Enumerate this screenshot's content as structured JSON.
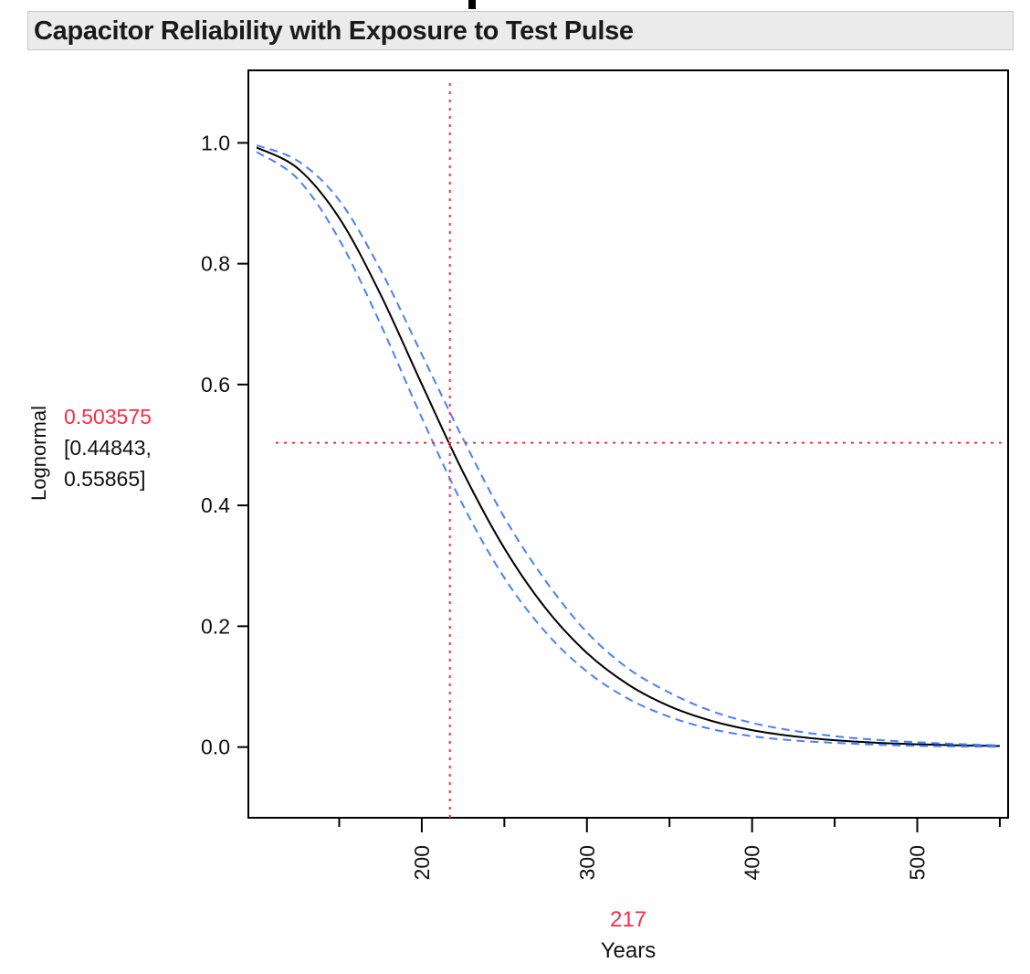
{
  "title": "Capacitor Reliability with Exposure to Test Pulse",
  "colors": {
    "curve": "#000000",
    "ci": "#4a7fff",
    "crosshair": "#ff2a44",
    "title_bg": "#ebebeb"
  },
  "y_readout": {
    "label": "Lognormal",
    "value": "0.503575",
    "ci_line1": "[0.44843,",
    "ci_line2": "0.55865]"
  },
  "x_readout": {
    "label": "Years",
    "value": "217"
  },
  "chart_data": {
    "type": "line",
    "title": "Capacitor Reliability with Exposure to Test Pulse",
    "xlabel": "Years",
    "ylabel": "Lognormal",
    "xlim": [
      95,
      555
    ],
    "ylim": [
      -0.117,
      1.12
    ],
    "x_ticks": [
      200,
      300,
      400,
      500
    ],
    "x_tick_labels": [
      "200",
      "300",
      "400",
      "500"
    ],
    "x_minor_ticks": [
      150,
      250,
      350,
      450,
      550
    ],
    "y_ticks": [
      0.0,
      0.2,
      0.4,
      0.6,
      0.8,
      1.0
    ],
    "y_tick_labels": [
      "0.0",
      "0.2",
      "0.4",
      "0.6",
      "0.8",
      "1.0"
    ],
    "grid": false,
    "crosshair": {
      "x": 217,
      "y": 0.503575
    },
    "x": [
      100,
      125,
      150,
      175,
      200,
      225,
      250,
      275,
      300,
      325,
      350,
      375,
      400,
      425,
      450,
      475,
      500,
      525,
      550
    ],
    "series": [
      {
        "role": "estimate",
        "style": "solid",
        "values": [
          0.9923,
          0.9576,
          0.8757,
          0.7493,
          0.6006,
          0.455,
          0.329,
          0.2296,
          0.1557,
          0.1034,
          0.0676,
          0.0437,
          0.028,
          0.0179,
          0.0113,
          0.0072,
          0.0046,
          0.0029,
          0.0018
        ]
      },
      {
        "role": "lower-ci",
        "style": "dashed",
        "values": [
          0.985,
          0.94,
          0.84,
          0.7,
          0.545,
          0.4,
          0.28,
          0.19,
          0.125,
          0.08,
          0.05,
          0.03,
          0.018,
          0.011,
          0.007,
          0.004,
          0.002,
          0.001,
          0.0005
        ]
      },
      {
        "role": "upper-ci",
        "style": "dashed",
        "values": [
          0.996,
          0.97,
          0.905,
          0.79,
          0.65,
          0.51,
          0.38,
          0.275,
          0.19,
          0.13,
          0.09,
          0.06,
          0.04,
          0.027,
          0.018,
          0.012,
          0.008,
          0.005,
          0.003
        ]
      }
    ]
  }
}
